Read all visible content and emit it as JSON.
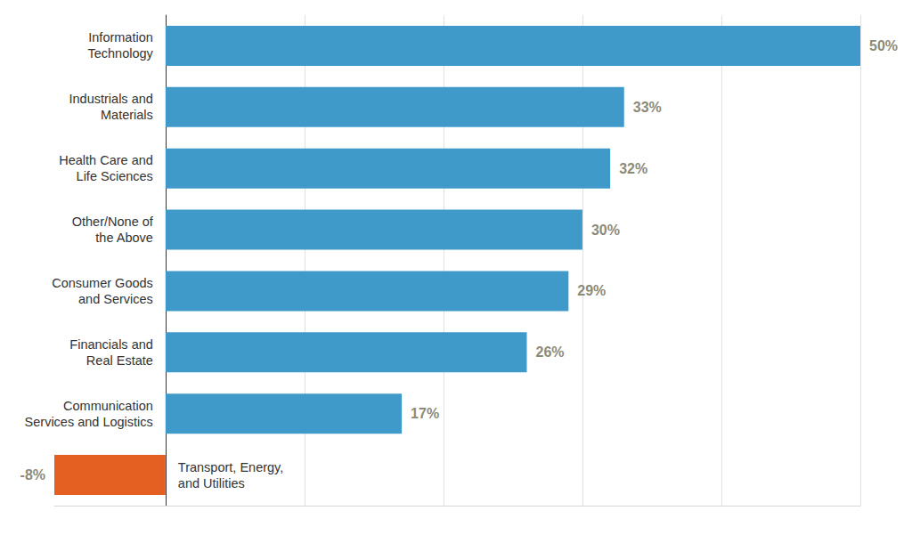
{
  "chart_data": {
    "type": "bar",
    "orientation": "horizontal",
    "categories": [
      "Information\nTechnology",
      "Industrials and\nMaterials",
      "Health Care and\nLife Sciences",
      "Other/None of\nthe Above",
      "Consumer Goods\nand Services",
      "Financials and\nReal Estate",
      "Communication\nServices and Logistics",
      "Transport, Energy,\nand Utilities"
    ],
    "values": [
      50,
      33,
      32,
      30,
      29,
      26,
      17,
      -8
    ],
    "value_labels": [
      "50%",
      "33%",
      "32%",
      "30%",
      "29%",
      "26%",
      "17%",
      "-8%"
    ],
    "colors": [
      "#3f9ac9",
      "#3f9ac9",
      "#3f9ac9",
      "#3f9ac9",
      "#3f9ac9",
      "#3f9ac9",
      "#3f9ac9",
      "#e35f22"
    ],
    "xlim": [
      -8,
      50
    ],
    "xticks": [
      0,
      10,
      20,
      30,
      40,
      50
    ],
    "grid": true,
    "data_labels": true,
    "tick_labels": "y"
  }
}
